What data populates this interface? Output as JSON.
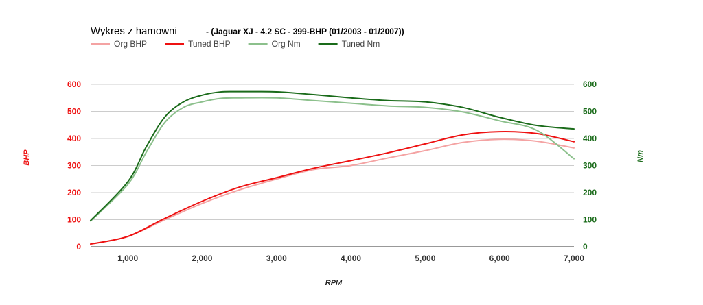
{
  "chart_data": {
    "type": "line",
    "title": "Wykres z hamowni",
    "subtitle": "- (Jaguar XJ - 4.2 SC - 399-BHP (01/2003 - 01/2007))",
    "xlabel": "RPM",
    "ylabel_left": "BHP",
    "ylabel_right": "Nm",
    "xlim": [
      500,
      7000
    ],
    "ylim_left": [
      0,
      600
    ],
    "ylim_right": [
      0,
      600
    ],
    "x_ticks": [
      1000,
      2000,
      3000,
      4000,
      5000,
      6000,
      7000
    ],
    "x_tick_labels": [
      "1,000",
      "2,000",
      "3,000",
      "4,000",
      "5,000",
      "6,000",
      "7,000"
    ],
    "y_ticks_left": [
      0,
      100,
      200,
      300,
      400,
      500,
      600
    ],
    "y_tick_labels_left": [
      "0",
      "100",
      "200",
      "300",
      "400",
      "500",
      "600"
    ],
    "y_ticks_right": [
      0,
      100,
      200,
      300,
      400,
      500,
      600
    ],
    "y_tick_labels_right": [
      "0",
      "100",
      "200",
      "300",
      "400",
      "500",
      "600"
    ],
    "grid": true,
    "legend_position": "top-left",
    "left_axis_color": "#ee1111",
    "right_axis_color": "#1a6b1a",
    "series": [
      {
        "name": "Org BHP",
        "color": "#f4a3a3",
        "axis": "left",
        "x": [
          500,
          1000,
          1500,
          2000,
          2500,
          3000,
          3500,
          4000,
          4500,
          5000,
          5500,
          6000,
          6500,
          7000
        ],
        "y": [
          10,
          38,
          100,
          160,
          210,
          250,
          285,
          300,
          328,
          355,
          385,
          397,
          390,
          365
        ]
      },
      {
        "name": "Tuned BHP",
        "color": "#ee1111",
        "axis": "left",
        "x": [
          500,
          1000,
          1500,
          2000,
          2500,
          3000,
          3500,
          4000,
          4500,
          5000,
          5500,
          6000,
          6500,
          7000
        ],
        "y": [
          10,
          38,
          105,
          168,
          220,
          255,
          290,
          318,
          347,
          380,
          413,
          425,
          418,
          388
        ]
      },
      {
        "name": "Org Nm",
        "color": "#8cc08c",
        "axis": "right",
        "x": [
          500,
          1000,
          1250,
          1500,
          1750,
          2000,
          2250,
          2500,
          3000,
          3500,
          4000,
          4500,
          5000,
          5500,
          6000,
          6500,
          7000
        ],
        "y": [
          95,
          230,
          350,
          460,
          515,
          535,
          548,
          550,
          550,
          540,
          530,
          520,
          515,
          498,
          465,
          430,
          325
        ]
      },
      {
        "name": "Tuned Nm",
        "color": "#1a6b1a",
        "axis": "right",
        "x": [
          500,
          1000,
          1250,
          1500,
          1750,
          2000,
          2250,
          2500,
          3000,
          3500,
          4000,
          4500,
          5000,
          5500,
          6000,
          6500,
          7000
        ],
        "y": [
          97,
          240,
          370,
          480,
          535,
          560,
          572,
          573,
          572,
          562,
          550,
          540,
          535,
          515,
          478,
          448,
          435
        ]
      }
    ]
  }
}
